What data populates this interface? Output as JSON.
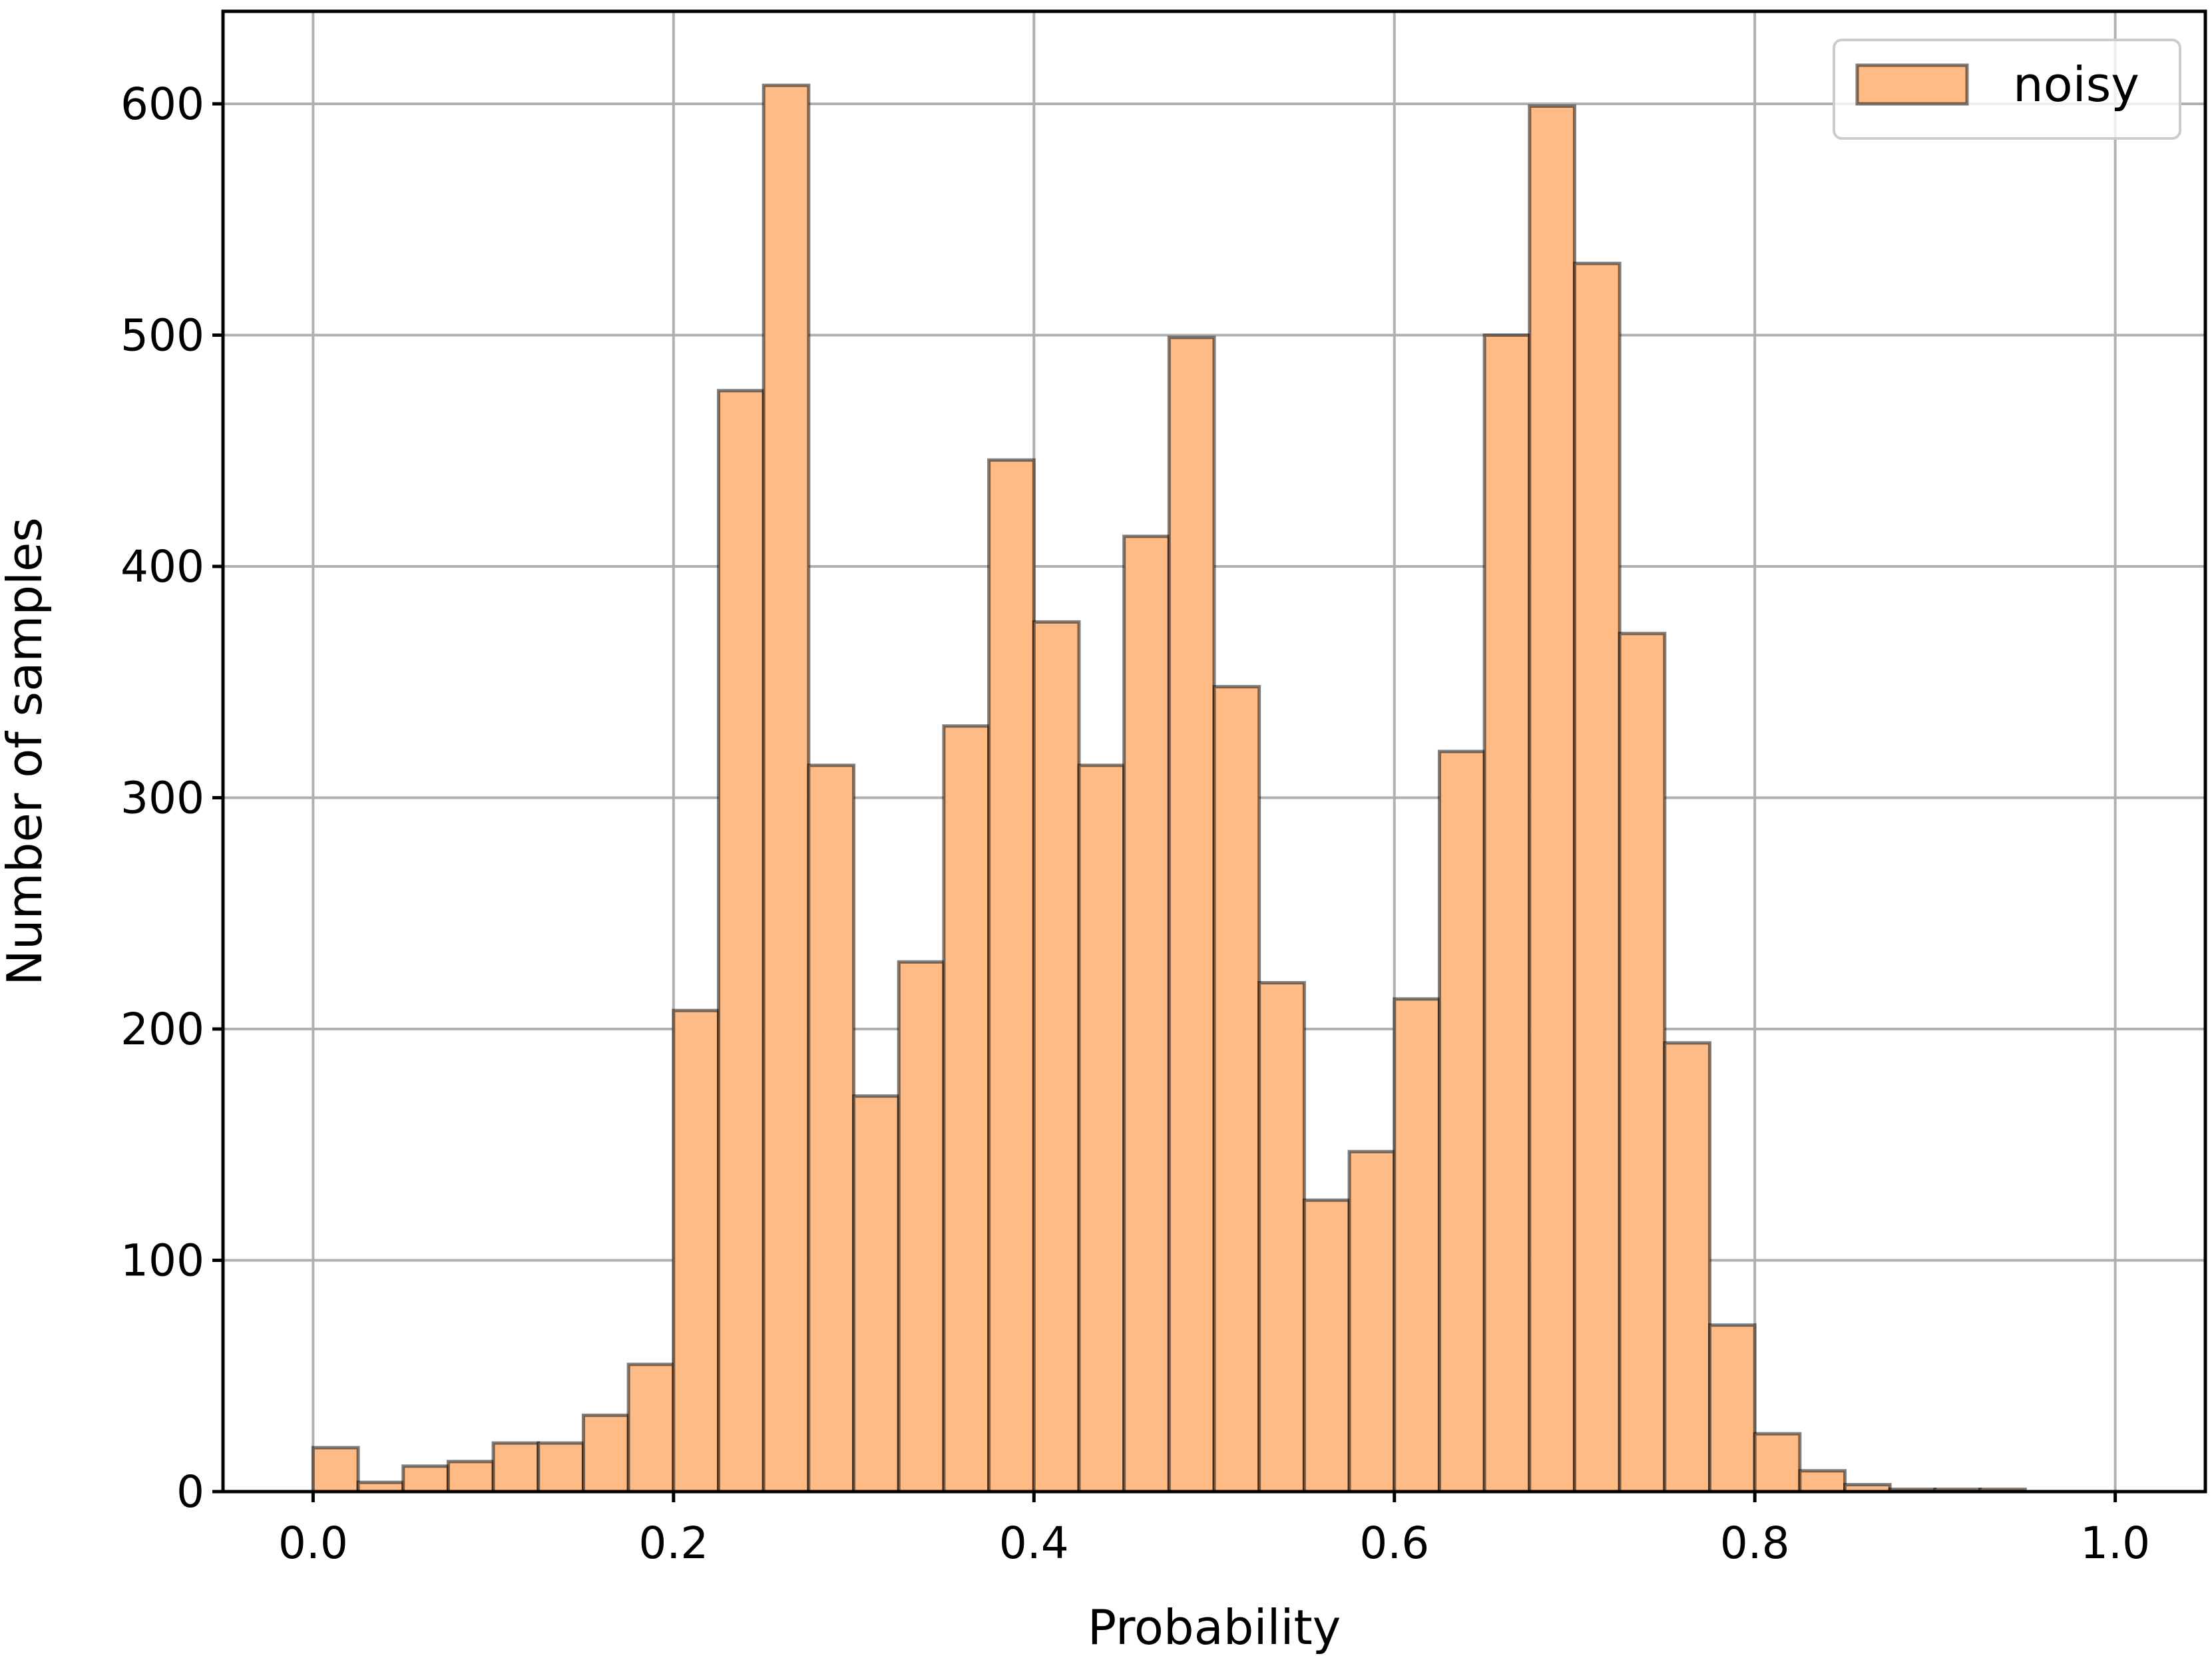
{
  "chart_data": {
    "type": "bar",
    "title": "",
    "xlabel": "Probability",
    "ylabel": "Number of samples",
    "xlim": [
      -0.05,
      1.05
    ],
    "ylim": [
      0,
      640
    ],
    "grid": true,
    "legend_position": "top-right",
    "x_ticks": [
      {
        "value": 0.0,
        "label": "0.0"
      },
      {
        "value": 0.2,
        "label": "0.2"
      },
      {
        "value": 0.4,
        "label": "0.4"
      },
      {
        "value": 0.6,
        "label": "0.6"
      },
      {
        "value": 0.8,
        "label": "0.8"
      },
      {
        "value": 1.0,
        "label": "1.0"
      }
    ],
    "y_ticks": [
      {
        "value": 0,
        "label": "0"
      },
      {
        "value": 100,
        "label": "100"
      },
      {
        "value": 200,
        "label": "200"
      },
      {
        "value": 300,
        "label": "300"
      },
      {
        "value": 400,
        "label": "400"
      },
      {
        "value": 500,
        "label": "500"
      },
      {
        "value": 600,
        "label": "600"
      }
    ],
    "bin_edges": [
      0.0,
      0.025,
      0.05,
      0.075,
      0.1,
      0.125,
      0.15,
      0.175,
      0.2,
      0.225,
      0.25,
      0.275,
      0.3,
      0.325,
      0.35,
      0.375,
      0.4,
      0.425,
      0.45,
      0.475,
      0.5,
      0.525,
      0.55,
      0.575,
      0.6,
      0.625,
      0.65,
      0.675,
      0.7,
      0.725,
      0.75,
      0.775,
      0.8,
      0.825,
      0.85,
      0.875,
      0.9,
      0.925,
      0.95
    ],
    "series": [
      {
        "name": "noisy",
        "color": "#ffbb85",
        "edge_color": "#000000",
        "values": [
          19,
          4,
          11,
          13,
          21,
          21,
          33,
          55,
          208,
          476,
          608,
          314,
          171,
          229,
          331,
          446,
          376,
          314,
          413,
          499,
          348,
          220,
          126,
          147,
          213,
          320,
          500,
          599,
          531,
          371,
          194,
          72,
          25,
          9,
          3,
          1,
          1,
          1
        ]
      }
    ]
  }
}
